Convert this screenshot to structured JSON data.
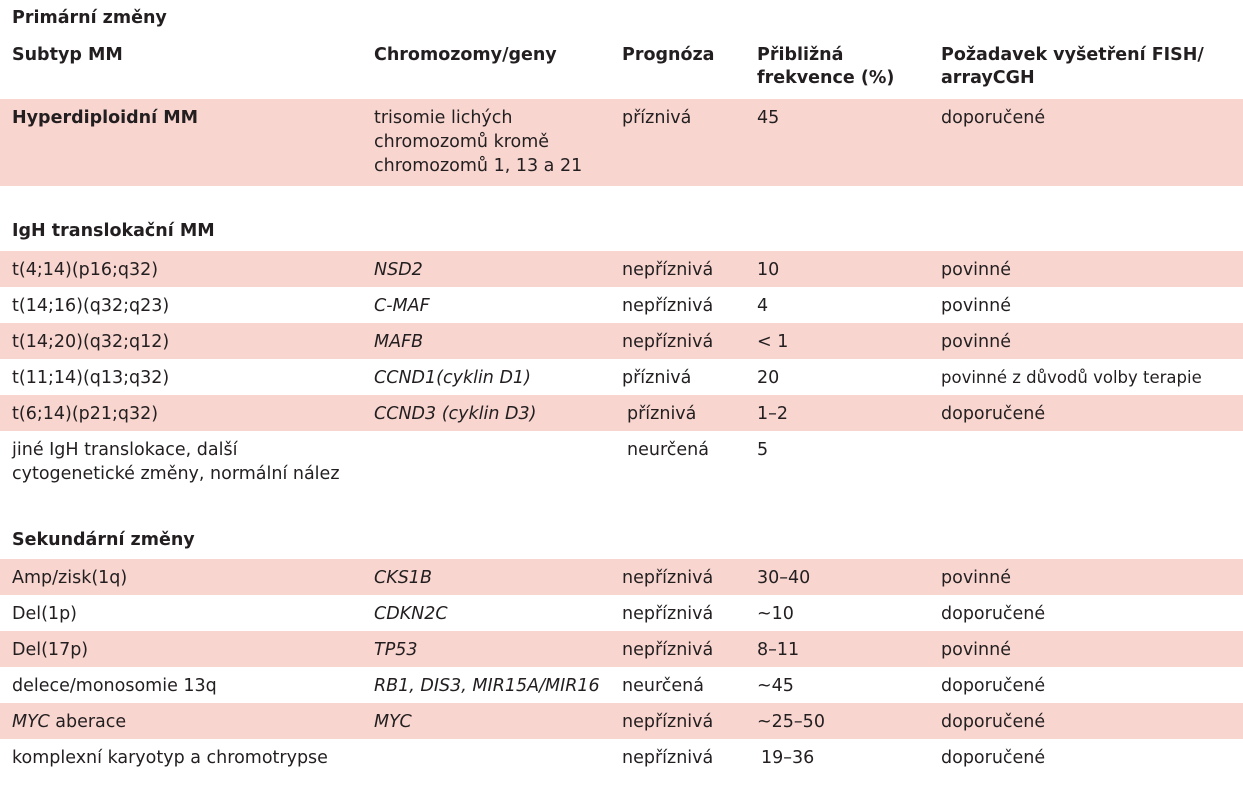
{
  "sections": {
    "primary": "Primární změny",
    "igh": "IgH translokační MM",
    "secondary": "Sekundární změny"
  },
  "headers": {
    "subtype": "Subtyp MM",
    "chromosomes": "Chromozomy/geny",
    "prognosis": "Prognóza",
    "frequency_l1": "Přibližná",
    "frequency_l2": "frekvence (%)",
    "requirement_l1": "Požadavek vyšetření FISH/",
    "requirement_l2": "arrayCGH"
  },
  "hyper": {
    "subtype": "Hyperdiploidní MM",
    "genes_l1": "trisomie lichých",
    "genes_l2": "chromozomů kromě",
    "genes_l3": "chromozomů 1, 13 a 21",
    "prognosis": "příznivá",
    "frequency": "45",
    "requirement": "doporučené"
  },
  "igh_rows": [
    {
      "subtype": "t(4;14)(p16;q32)",
      "genes": "NSD2",
      "prognosis": "nepříznivá",
      "frequency": "10",
      "requirement": "povinné"
    },
    {
      "subtype": "t(14;16)(q32;q23)",
      "genes": "C-MAF",
      "prognosis": "nepříznivá",
      "frequency": "4",
      "requirement": "povinné"
    },
    {
      "subtype": "t(14;20)(q32;q12)",
      "genes": "MAFB",
      "prognosis": "nepříznivá",
      "frequency": "< 1",
      "requirement": "povinné"
    },
    {
      "subtype": "t(11;14)(q13;q32)",
      "genes": "CCND1(cyklin D1)",
      "prognosis": "příznivá",
      "frequency": "20",
      "requirement": "povinné z důvodů volby terapie"
    },
    {
      "subtype": "t(6;14)(p21;q32)",
      "genes": "CCND3 (cyklin D3)",
      "prognosis": "příznivá",
      "frequency": "1–2",
      "requirement": "doporučené"
    }
  ],
  "other_igh": {
    "subtype_l1": "jiné IgH translokace, další",
    "subtype_l2": "cytogenetické změny, normální nález",
    "prognosis": "neurčená",
    "frequency": "5"
  },
  "secondary_rows": [
    {
      "subtype": "Amp/zisk(1q)",
      "genes": "CKS1B",
      "prognosis": "nepříznivá",
      "frequency": "30–40",
      "requirement": "povinné"
    },
    {
      "subtype": "Del(1p)",
      "genes": "CDKN2C",
      "prognosis": "nepříznivá",
      "frequency": "~10",
      "requirement": "doporučené"
    },
    {
      "subtype": "Del(17p)",
      "genes": "TP53",
      "prognosis": "nepříznivá",
      "frequency": "8–11",
      "requirement": "povinné"
    },
    {
      "subtype": "delece/monosomie 13q",
      "genes": "RB1, DIS3, MIR15A/MIR16",
      "prognosis": "neurčená",
      "frequency": "~45",
      "requirement": "doporučené"
    },
    {
      "subtype_italic": "MYC",
      "subtype_rest": " aberace",
      "genes": "MYC",
      "prognosis": "nepříznivá",
      "frequency": "~25–50",
      "requirement": "doporučené"
    },
    {
      "subtype": "komplexní karyotyp a chromotrypse",
      "genes": "",
      "prognosis": "nepříznivá",
      "frequency": "19–36",
      "requirement": "doporučené"
    }
  ]
}
